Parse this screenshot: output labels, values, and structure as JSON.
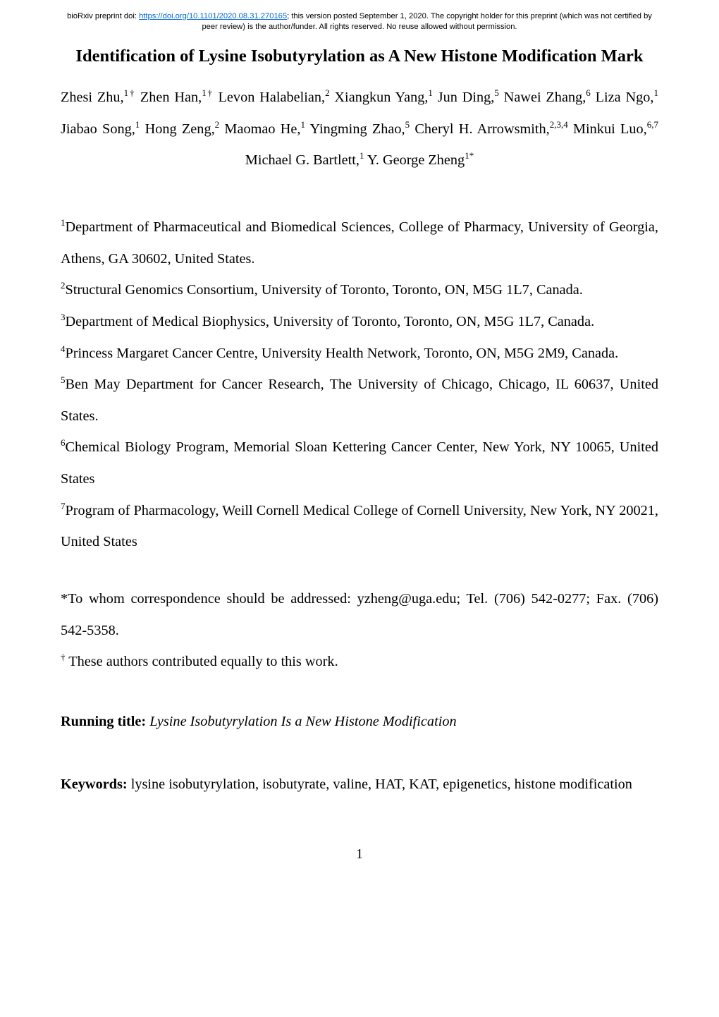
{
  "preprint_header": {
    "prefix": "bioRxiv preprint doi: ",
    "doi_url": "https://doi.org/10.1101/2020.08.31.270165",
    "suffix": "; this version posted September 1, 2020. The copyright holder for this preprint (which was not certified by peer review) is the author/funder. All rights reserved. No reuse allowed without permission."
  },
  "title": "Identification of Lysine Isobutyrylation as A New Histone Modification Mark",
  "authors": [
    {
      "name": "Zhesi Zhu,",
      "sup": "1†"
    },
    {
      "name": "Zhen Han,",
      "sup": "1†"
    },
    {
      "name": "Levon Halabelian,",
      "sup": "2"
    },
    {
      "name": "Xiangkun Yang,",
      "sup": "1"
    },
    {
      "name": "Jun Ding,",
      "sup": "5"
    },
    {
      "name": "Nawei Zhang,",
      "sup": "6"
    },
    {
      "name": "Liza Ngo,",
      "sup": "1"
    },
    {
      "name": "Jiabao Song,",
      "sup": "1"
    },
    {
      "name": "Hong Zeng,",
      "sup": "2"
    },
    {
      "name": "Maomao He,",
      "sup": "1"
    },
    {
      "name": "Yingming Zhao,",
      "sup": "5"
    },
    {
      "name": "Cheryl H. Arrowsmith,",
      "sup": "2,3,4"
    },
    {
      "name": "Minkui Luo,",
      "sup": "6,7"
    },
    {
      "name": "Michael G. Bartlett,",
      "sup": "1"
    },
    {
      "name": "Y. George Zheng",
      "sup": "1*"
    }
  ],
  "affiliations": [
    {
      "sup": "1",
      "text": "Department of Pharmaceutical and Biomedical Sciences, College of Pharmacy, University of Georgia, Athens, GA 30602, United States."
    },
    {
      "sup": "2",
      "text": "Structural Genomics Consortium, University of Toronto, Toronto, ON, M5G 1L7, Canada."
    },
    {
      "sup": "3",
      "text": "Department of Medical Biophysics, University of Toronto, Toronto, ON, M5G 1L7, Canada."
    },
    {
      "sup": "4",
      "text": "Princess Margaret Cancer Centre, University Health Network, Toronto, ON, M5G 2M9, Canada."
    },
    {
      "sup": "5",
      "text": "Ben May Department for Cancer Research, The University of Chicago, Chicago, IL 60637, United States."
    },
    {
      "sup": "6",
      "text": "Chemical Biology Program, Memorial Sloan Kettering Cancer Center, New York, NY 10065, United States"
    },
    {
      "sup": "7",
      "text": "Program of Pharmacology, Weill Cornell Medical College of Cornell University, New York, NY 20021, United States"
    }
  ],
  "correspondence": {
    "line1": "*To whom correspondence should be addressed: yzheng@uga.edu; Tel. (706) 542-0277; Fax. (706) 542-5358.",
    "line2_sup": "†",
    "line2_text": " These authors contributed equally to this work."
  },
  "running_title": {
    "label": "Running title: ",
    "value": "Lysine Isobutyrylation Is a New Histone Modification"
  },
  "keywords": {
    "label": "Keywords: ",
    "value": "lysine isobutyrylation, isobutyrate, valine, HAT, KAT, epigenetics, histone modification"
  },
  "page_number": "1"
}
